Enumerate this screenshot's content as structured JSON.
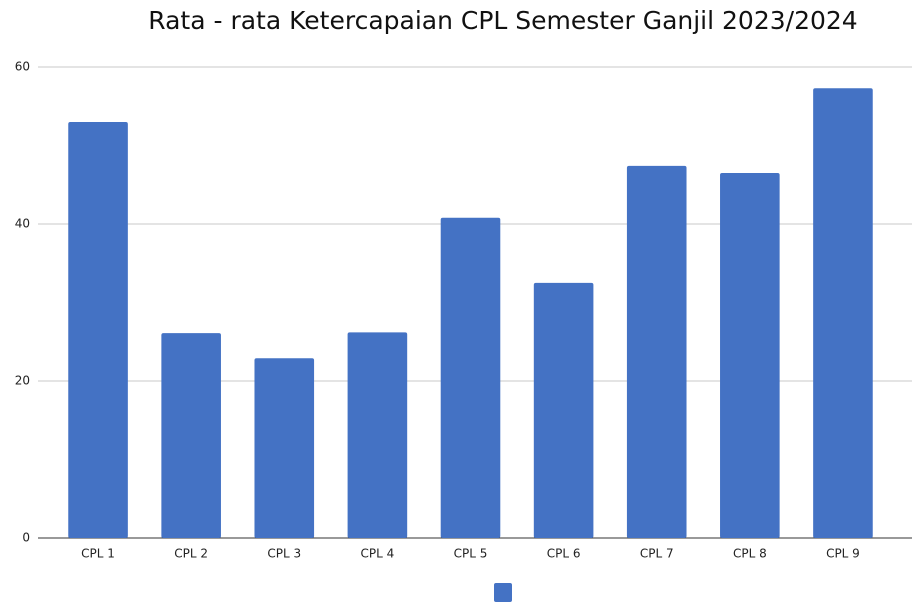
{
  "chart_data": {
    "type": "bar",
    "title": "Rata - rata Ketercapaian CPL Semester Ganjil 2023/2024",
    "categories": [
      "CPL 1",
      "CPL 2",
      "CPL 3",
      "CPL 4",
      "CPL 5",
      "CPL 6",
      "CPL 7",
      "CPL 8",
      "CPL 9"
    ],
    "values": [
      53,
      26.1,
      22.9,
      26.2,
      40.8,
      32.5,
      47.4,
      46.5,
      57.3
    ],
    "color": "#4472c4",
    "ylim": [
      0,
      60
    ],
    "yticks": [
      0,
      20,
      40,
      60
    ],
    "grid": true,
    "legend": "bottom"
  }
}
